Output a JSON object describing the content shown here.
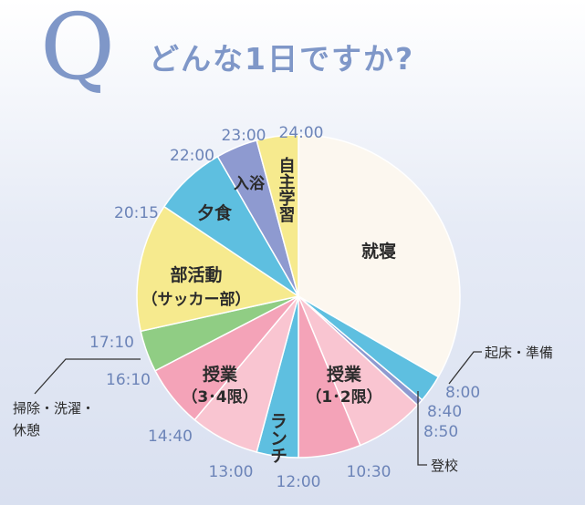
{
  "header": {
    "q_letter": "Q",
    "question": "どんな1日ですか?"
  },
  "chart_data": {
    "type": "pie",
    "title": "",
    "unit": "time of day (24h clock)",
    "slices": [
      {
        "label": "就寝",
        "start": "0:00",
        "end": "8:00",
        "color": "#fcf7ef"
      },
      {
        "label": "起床・準備",
        "start": "8:00",
        "end": "8:40",
        "color": "#5ebfe0"
      },
      {
        "label": "登校",
        "start": "8:40",
        "end": "8:50",
        "color": "#8e9ad0"
      },
      {
        "label": "授業\n（1･2限）",
        "start": "8:50",
        "end": "10:30",
        "color": "#f9c5d1"
      },
      {
        "label": "授業\n（1･2限）",
        "start": "10:30",
        "end": "12:00",
        "color": "#f4a3b8"
      },
      {
        "label": "ランチ",
        "start": "12:00",
        "end": "13:00",
        "color": "#5ebfe0"
      },
      {
        "label": "授業\n（3･4限）",
        "start": "13:00",
        "end": "14:40",
        "color": "#f9c5d1"
      },
      {
        "label": "授業\n（3･4限）",
        "start": "14:40",
        "end": "16:10",
        "color": "#f4a3b8"
      },
      {
        "label": "掃除・洗濯・\n休憩",
        "start": "16:10",
        "end": "17:10",
        "color": "#90cd84"
      },
      {
        "label": "部活動\n（サッカー部）",
        "start": "17:10",
        "end": "20:15",
        "color": "#f6ea8e"
      },
      {
        "label": "夕食",
        "start": "20:15",
        "end": "22:00",
        "color": "#5ebfe0"
      },
      {
        "label": "入浴",
        "start": "22:00",
        "end": "23:00",
        "color": "#8e9ad0"
      },
      {
        "label": "自主学習",
        "start": "23:00",
        "end": "24:00",
        "color": "#f6ea8e"
      }
    ],
    "tick_labels": [
      "24:00",
      "8:00",
      "8:40",
      "8:50",
      "10:30",
      "12:00",
      "13:00",
      "14:40",
      "16:10",
      "17:10",
      "20:15",
      "22:00",
      "23:00"
    ],
    "inner_labels": {
      "sleep": "就寝",
      "class12_line1": "授業",
      "class12_line2": "（1･2限）",
      "lunch": "ランチ",
      "class34_line1": "授業",
      "class34_line2": "（3･4限）",
      "club_line1": "部活動",
      "club_line2": "（サッカー部）",
      "dinner": "夕食",
      "bath": "入浴",
      "study": "自主学習"
    },
    "callouts": {
      "wake": "起床・準備",
      "commute": "登校",
      "cleaning_line1": "掃除・洗濯・",
      "cleaning_line2": "休憩"
    },
    "legend": "none"
  }
}
